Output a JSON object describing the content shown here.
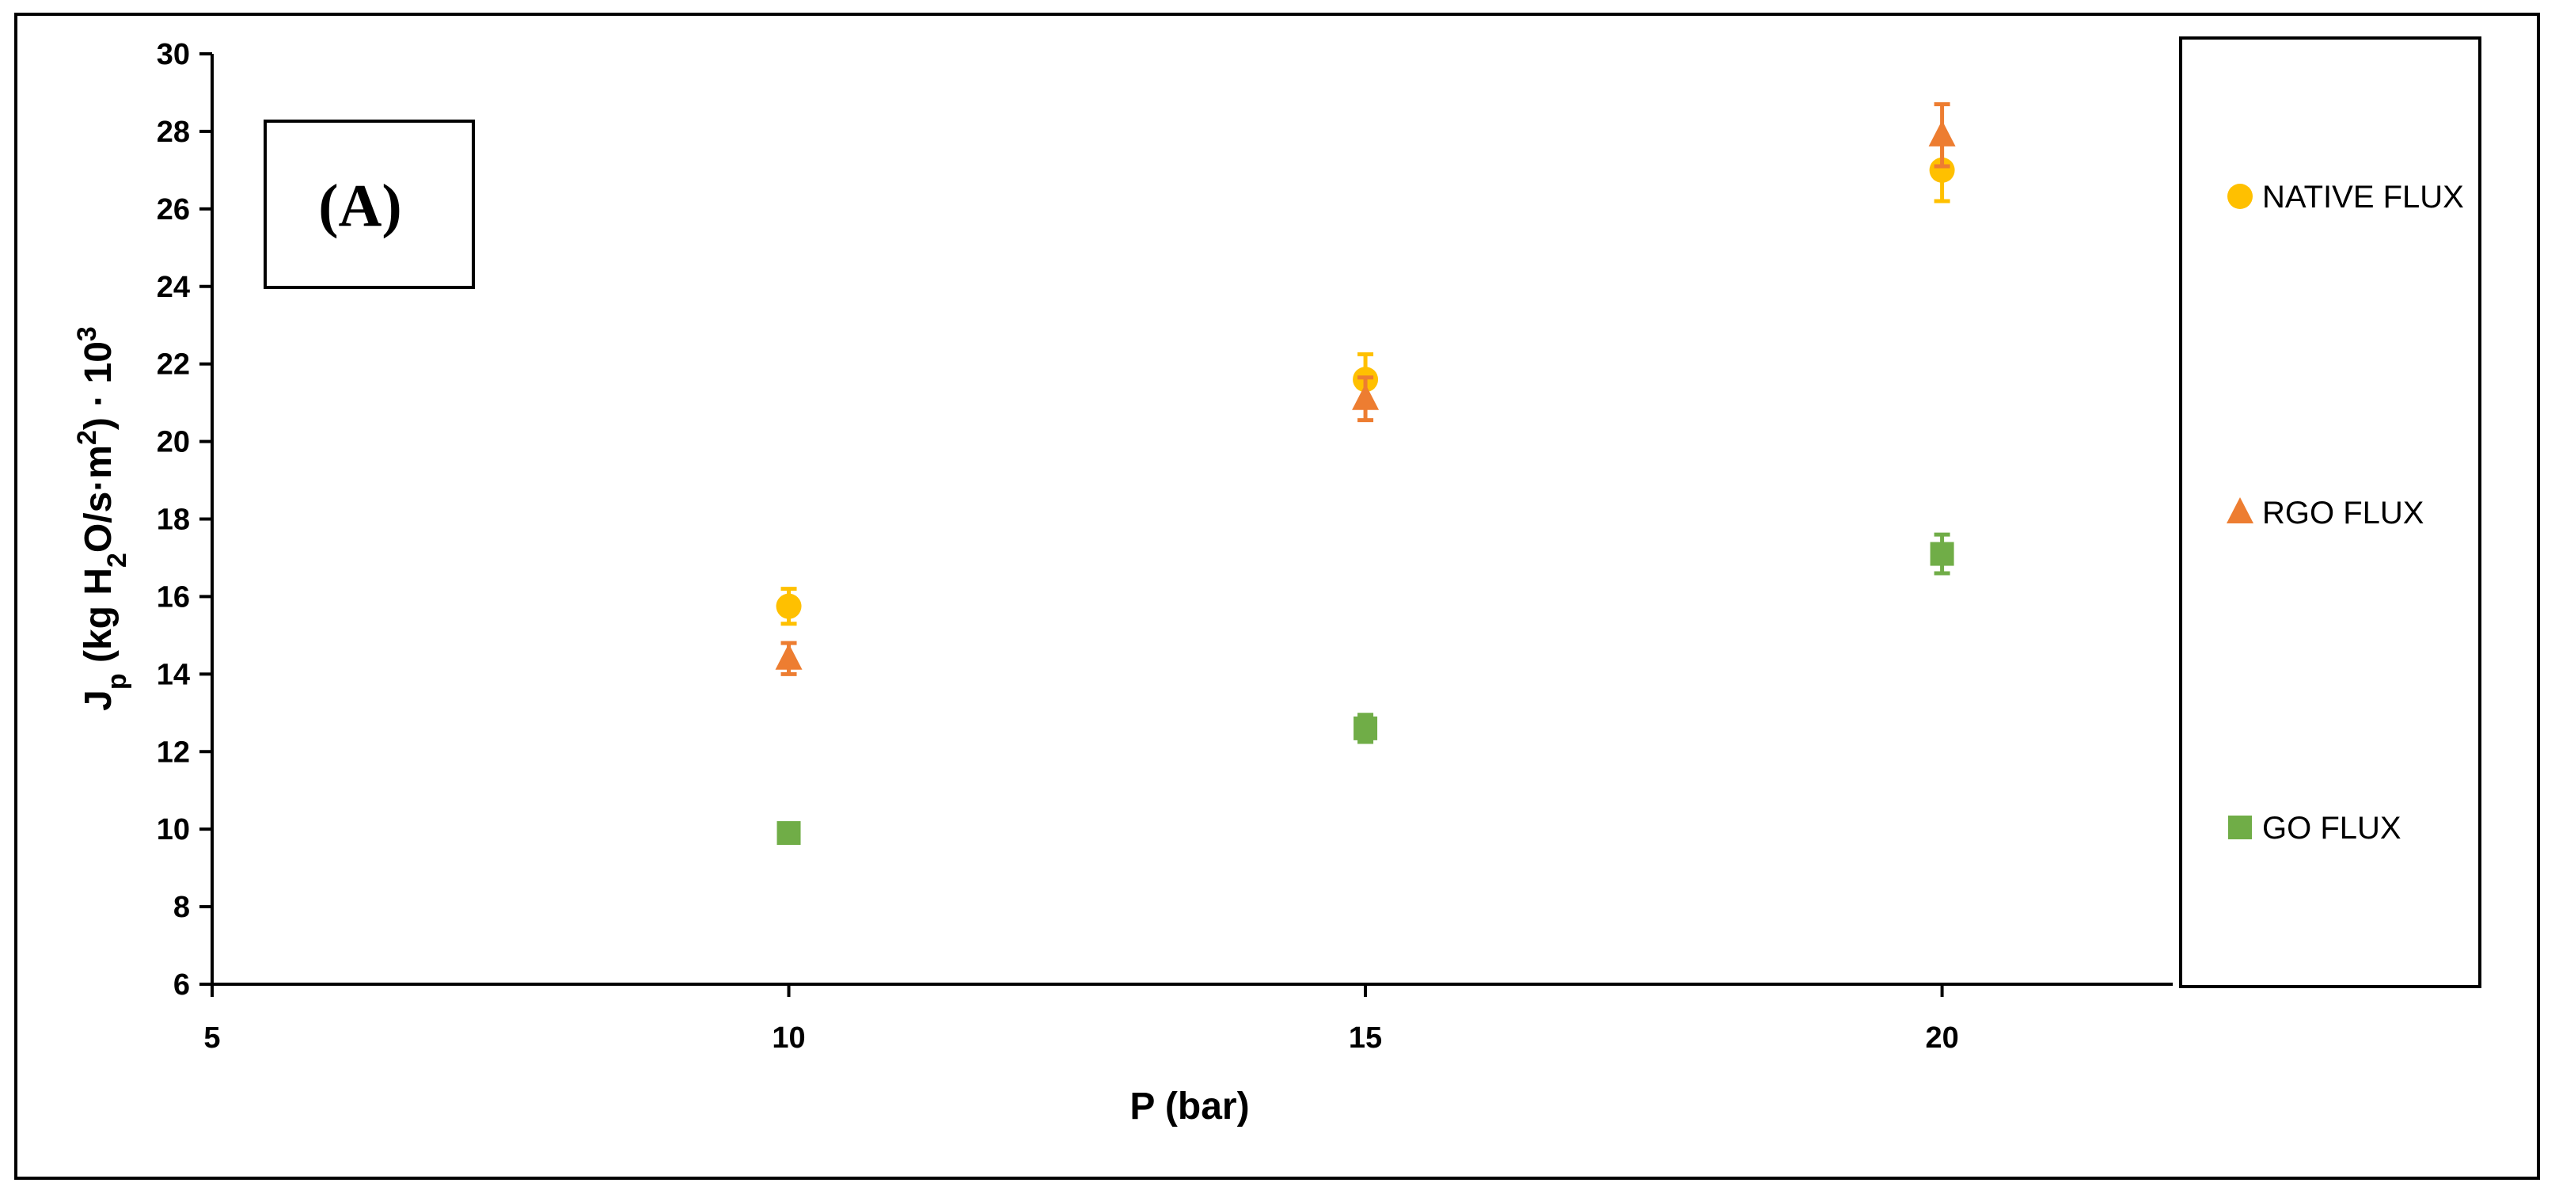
{
  "panel_label": "(A)",
  "chart_data": {
    "type": "scatter",
    "xlabel": "P (bar)",
    "ylabel": {
      "main": "J",
      "sub": "p",
      "part1": " (kg H",
      "sub2": "2",
      "part2": "O/s·m",
      "sup1": "2",
      "part3": ") · 10",
      "sup2": "3"
    },
    "xlim": [
      5,
      22
    ],
    "ylim": [
      6,
      30
    ],
    "x_ticks": [
      5,
      10,
      15,
      20
    ],
    "y_ticks": [
      6,
      8,
      10,
      12,
      14,
      16,
      18,
      20,
      22,
      24,
      26,
      28,
      30
    ],
    "legend_position": "right",
    "grid": false,
    "series": [
      {
        "name": "NATIVE FLUX",
        "marker": "circle",
        "color": "#FFC000",
        "x": [
          10,
          15,
          20
        ],
        "y": [
          15.75,
          21.6,
          27.0
        ],
        "err": [
          0.45,
          0.65,
          0.8
        ]
      },
      {
        "name": "RGO FLUX",
        "marker": "triangle",
        "color": "#ED7D31",
        "x": [
          10,
          15,
          20
        ],
        "y": [
          14.4,
          21.1,
          27.9
        ],
        "err": [
          0.4,
          0.55,
          0.8
        ]
      },
      {
        "name": "GO FLUX",
        "marker": "square",
        "color": "#70AD47",
        "x": [
          10,
          15,
          20
        ],
        "y": [
          9.9,
          12.6,
          17.1
        ],
        "err": [
          0.2,
          0.35,
          0.5
        ]
      }
    ]
  }
}
